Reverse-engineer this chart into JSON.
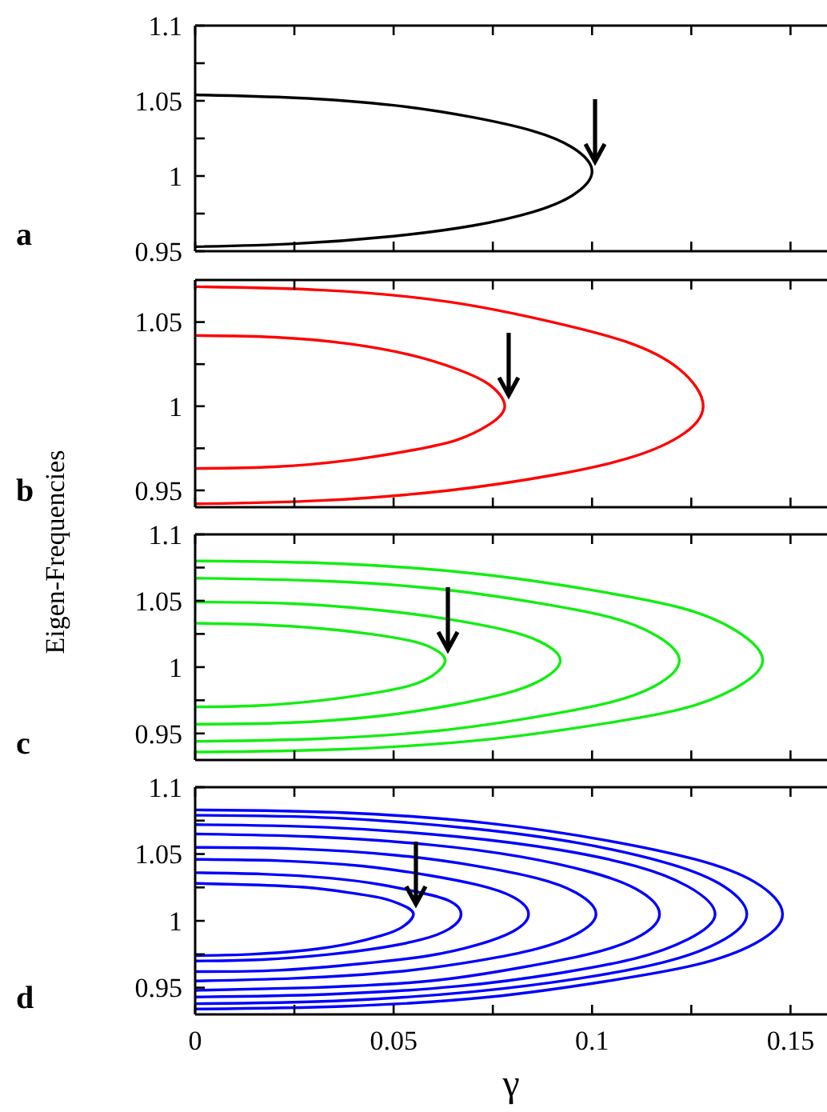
{
  "chart_data": [
    {
      "type": "line",
      "title": "a",
      "xlim": [
        0,
        0.16
      ],
      "xticks": [
        0,
        {
          "value": 0.025,
          "label": null
        },
        0.05,
        {
          "value": 0.075,
          "label": null
        },
        0.1,
        {
          "value": 0.125,
          "label": null
        },
        0.15
      ],
      "ylim": [
        0.95,
        1.1
      ],
      "yticks": [
        0.95,
        {
          "value": 0.975,
          "label": null
        },
        1,
        {
          "value": 1.025,
          "label": null
        },
        1.05,
        {
          "value": 1.075,
          "label": null
        },
        1.1
      ],
      "tick_labels": "y",
      "marker": "none",
      "series": [
        {
          "color": "#000000",
          "x": [
            0,
            0.025,
            0.05,
            0.07,
            0.085,
            0.095,
            0.1,
            0.095,
            0.085,
            0.07,
            0.05,
            0.025,
            0
          ],
          "values": [
            1.054,
            1.052,
            1.047,
            1.039,
            1.03,
            1.019,
            1.003,
            0.987,
            0.976,
            0.967,
            0.96,
            0.955,
            0.953
          ]
        }
      ]
    },
    {
      "type": "line",
      "title": "b",
      "xlim": [
        0,
        0.16
      ],
      "xticks": [
        0,
        {
          "value": 0.025,
          "label": null
        },
        0.05,
        {
          "value": 0.075,
          "label": null
        },
        0.1,
        {
          "value": 0.125,
          "label": null
        },
        0.15
      ],
      "ylim": [
        0.94,
        1.075
      ],
      "yticks": [
        0.95,
        {
          "value": 0.975,
          "label": null
        },
        1,
        {
          "value": 1.025,
          "label": null
        },
        1.05
      ],
      "tick_labels": "y",
      "marker": "none",
      "series": [
        {
          "color": "#ff0000",
          "x": [
            0,
            0.032,
            0.064,
            0.09,
            0.109,
            0.122,
            0.128,
            0.122,
            0.109,
            0.09,
            0.064,
            0.032,
            0
          ],
          "values": [
            1.071,
            1.069,
            1.062,
            1.05,
            1.038,
            1.022,
            1.0,
            0.982,
            0.969,
            0.959,
            0.95,
            0.944,
            0.942
          ]
        },
        {
          "color": "#ff0000",
          "x": [
            0,
            0.02,
            0.039,
            0.055,
            0.066,
            0.074,
            0.078,
            0.074,
            0.066,
            0.055,
            0.039,
            0.02,
            0
          ],
          "values": [
            1.042,
            1.041,
            1.037,
            1.03,
            1.022,
            1.013,
            1.0,
            0.989,
            0.98,
            0.974,
            0.968,
            0.964,
            0.963
          ]
        }
      ]
    },
    {
      "type": "line",
      "title": "c",
      "ylabel": "Eigen-Frequencies",
      "xlim": [
        0,
        0.16
      ],
      "xticks": [
        0,
        {
          "value": 0.025,
          "label": null
        },
        0.05,
        {
          "value": 0.075,
          "label": null
        },
        0.1,
        {
          "value": 0.125,
          "label": null
        },
        0.15
      ],
      "ylim": [
        0.93,
        1.1
      ],
      "yticks": [
        0.95,
        {
          "value": 0.975,
          "label": null
        },
        1,
        {
          "value": 1.025,
          "label": null
        },
        1.05,
        {
          "value": 1.075,
          "label": null
        },
        1.1
      ],
      "tick_labels": "y",
      "marker": "none",
      "series": [
        {
          "color": "#11ee11",
          "x": [
            0,
            0.016,
            0.032,
            0.044,
            0.054,
            0.06,
            0.063,
            0.06,
            0.054,
            0.044,
            0.032,
            0.016,
            0
          ],
          "values": [
            1.033,
            1.032,
            1.029,
            1.025,
            1.02,
            1.014,
            1.005,
            0.994,
            0.986,
            0.98,
            0.975,
            0.971,
            0.97
          ]
        },
        {
          "color": "#11ee11",
          "x": [
            0,
            0.023,
            0.046,
            0.064,
            0.078,
            0.087,
            0.092,
            0.087,
            0.078,
            0.064,
            0.046,
            0.023,
            0
          ],
          "values": [
            1.049,
            1.048,
            1.043,
            1.036,
            1.028,
            1.019,
            1.005,
            0.99,
            0.98,
            0.971,
            0.963,
            0.958,
            0.957
          ]
        },
        {
          "color": "#11ee11",
          "x": [
            0,
            0.031,
            0.061,
            0.085,
            0.104,
            0.116,
            0.122,
            0.116,
            0.104,
            0.085,
            0.061,
            0.031,
            0
          ],
          "values": [
            1.067,
            1.065,
            1.059,
            1.049,
            1.038,
            1.024,
            1.005,
            0.986,
            0.973,
            0.962,
            0.952,
            0.946,
            0.944
          ]
        },
        {
          "color": "#11ee11",
          "x": [
            0,
            0.036,
            0.072,
            0.1,
            0.122,
            0.136,
            0.143,
            0.136,
            0.122,
            0.1,
            0.072,
            0.036,
            0
          ],
          "values": [
            1.08,
            1.078,
            1.07,
            1.058,
            1.045,
            1.028,
            1.005,
            0.984,
            0.968,
            0.956,
            0.945,
            0.938,
            0.936
          ]
        }
      ]
    },
    {
      "type": "line",
      "title": "d",
      "xlabel": "γ",
      "xlim": [
        0,
        0.16
      ],
      "xticks": [
        0,
        {
          "value": 0.025,
          "label": null
        },
        0.05,
        {
          "value": 0.075,
          "label": null
        },
        0.1,
        {
          "value": 0.125,
          "label": null
        },
        0.15
      ],
      "ylim": [
        0.93,
        1.1
      ],
      "yticks": [
        0.95,
        {
          "value": 0.975,
          "label": null
        },
        1,
        {
          "value": 1.025,
          "label": null
        },
        1.05,
        {
          "value": 1.075,
          "label": null
        },
        1.1
      ],
      "marker": "none",
      "series": [
        {
          "color": "#0000ff",
          "x": [
            0,
            0.014,
            0.028,
            0.039,
            0.047,
            0.052,
            0.055,
            0.052,
            0.047,
            0.039,
            0.028,
            0.014,
            0
          ],
          "values": [
            1.028,
            1.027,
            1.025,
            1.021,
            1.017,
            1.012,
            1.005,
            0.995,
            0.989,
            0.983,
            0.978,
            0.975,
            0.974
          ]
        },
        {
          "color": "#0000ff",
          "x": [
            0,
            0.017,
            0.034,
            0.047,
            0.057,
            0.064,
            0.067,
            0.064,
            0.057,
            0.047,
            0.034,
            0.017,
            0
          ],
          "values": [
            1.036,
            1.035,
            1.032,
            1.027,
            1.021,
            1.015,
            1.005,
            0.994,
            0.986,
            0.98,
            0.975,
            0.971,
            0.97
          ]
        },
        {
          "color": "#0000ff",
          "x": [
            0,
            0.021,
            0.042,
            0.059,
            0.071,
            0.08,
            0.084,
            0.08,
            0.071,
            0.059,
            0.042,
            0.021,
            0
          ],
          "values": [
            1.046,
            1.045,
            1.041,
            1.034,
            1.027,
            1.018,
            1.005,
            0.992,
            0.982,
            0.974,
            0.968,
            0.963,
            0.962
          ]
        },
        {
          "color": "#0000ff",
          "x": [
            0,
            0.025,
            0.051,
            0.071,
            0.086,
            0.096,
            0.101,
            0.096,
            0.086,
            0.071,
            0.051,
            0.025,
            0
          ],
          "values": [
            1.055,
            1.054,
            1.049,
            1.041,
            1.032,
            1.021,
            1.005,
            0.99,
            0.979,
            0.97,
            0.962,
            0.957,
            0.955
          ]
        },
        {
          "color": "#0000ff",
          "x": [
            0,
            0.029,
            0.059,
            0.082,
            0.099,
            0.111,
            0.117,
            0.111,
            0.099,
            0.082,
            0.059,
            0.029,
            0
          ],
          "values": [
            1.065,
            1.063,
            1.057,
            1.048,
            1.037,
            1.024,
            1.005,
            0.987,
            0.975,
            0.965,
            0.955,
            0.95,
            0.948
          ]
        },
        {
          "color": "#0000ff",
          "x": [
            0,
            0.033,
            0.066,
            0.092,
            0.111,
            0.124,
            0.131,
            0.124,
            0.111,
            0.092,
            0.066,
            0.033,
            0
          ],
          "values": [
            1.072,
            1.07,
            1.063,
            1.053,
            1.041,
            1.026,
            1.005,
            0.986,
            0.972,
            0.961,
            0.951,
            0.945,
            0.943
          ]
        },
        {
          "color": "#0000ff",
          "x": [
            0,
            0.035,
            0.07,
            0.097,
            0.118,
            0.132,
            0.139,
            0.132,
            0.118,
            0.097,
            0.07,
            0.035,
            0
          ],
          "values": [
            1.079,
            1.077,
            1.069,
            1.058,
            1.044,
            1.028,
            1.005,
            0.984,
            0.969,
            0.957,
            0.947,
            0.94,
            0.938
          ]
        },
        {
          "color": "#0000ff",
          "x": [
            0,
            0.037,
            0.074,
            0.104,
            0.126,
            0.141,
            0.148,
            0.141,
            0.126,
            0.104,
            0.074,
            0.037,
            0
          ],
          "values": [
            1.083,
            1.081,
            1.073,
            1.06,
            1.046,
            1.029,
            1.005,
            0.983,
            0.967,
            0.955,
            0.943,
            0.936,
            0.934
          ]
        }
      ]
    }
  ]
}
